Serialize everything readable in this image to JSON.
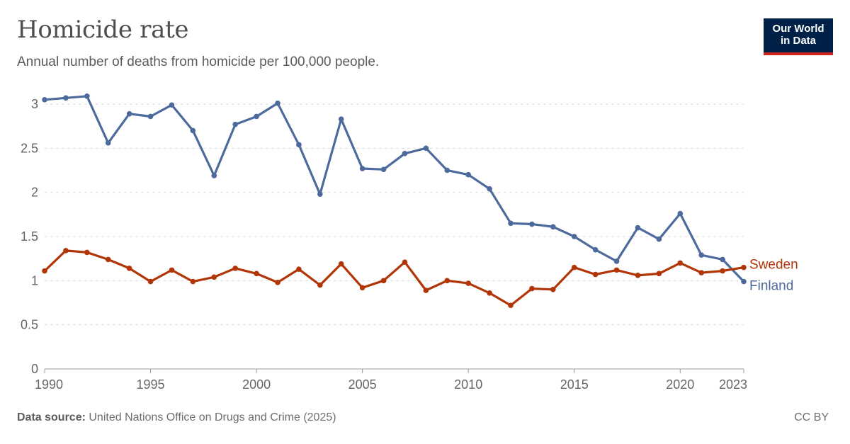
{
  "header": {
    "title": "Homicide rate",
    "subtitle": "Annual number of deaths from homicide per 100,000 people."
  },
  "logo": {
    "line1": "Our World",
    "line2": "in Data",
    "bg_color": "#002147",
    "accent_color": "#ce261e"
  },
  "footer": {
    "source_label": "Data source:",
    "source_text": "United Nations Office on Drugs and Crime (2025)",
    "license": "CC BY"
  },
  "chart_data": {
    "type": "line",
    "title": "Homicide rate",
    "subtitle": "Annual number of deaths from homicide per 100,000 people.",
    "xlim": [
      1990,
      2023
    ],
    "ylim": [
      0,
      3
    ],
    "x_ticks": [
      1990,
      1995,
      2000,
      2005,
      2010,
      2015,
      2020,
      2023
    ],
    "y_ticks": [
      0,
      0.5,
      1,
      1.5,
      2,
      2.5,
      3
    ],
    "y_tick_labels": [
      "0",
      "0.5",
      "1",
      "1.5",
      "2",
      "2.5",
      "3"
    ],
    "grid": "horizontal dashed",
    "legend": "inline labels at line ends (right)",
    "x": [
      1990,
      1991,
      1992,
      1993,
      1994,
      1995,
      1996,
      1997,
      1998,
      1999,
      2000,
      2001,
      2002,
      2003,
      2004,
      2005,
      2006,
      2007,
      2008,
      2009,
      2010,
      2011,
      2012,
      2013,
      2014,
      2015,
      2016,
      2017,
      2018,
      2019,
      2020,
      2021,
      2022,
      2023
    ],
    "series": [
      {
        "name": "Finland",
        "color": "#4c6a9c",
        "values": [
          3.05,
          3.07,
          3.09,
          2.56,
          2.89,
          2.86,
          2.99,
          2.7,
          2.19,
          2.77,
          2.86,
          3.01,
          2.54,
          1.98,
          2.83,
          2.27,
          2.26,
          2.44,
          2.5,
          2.25,
          2.2,
          2.04,
          1.65,
          1.64,
          1.61,
          1.5,
          1.35,
          1.22,
          1.6,
          1.47,
          1.76,
          1.29,
          1.24,
          0.99
        ]
      },
      {
        "name": "Sweden",
        "color": "#b13507",
        "values": [
          1.11,
          1.34,
          1.32,
          1.24,
          1.14,
          0.99,
          1.12,
          0.99,
          1.04,
          1.14,
          1.08,
          0.98,
          1.13,
          0.95,
          1.19,
          0.92,
          1.0,
          1.21,
          0.89,
          1.0,
          0.97,
          0.86,
          0.72,
          0.91,
          0.9,
          1.15,
          1.07,
          1.12,
          1.06,
          1.08,
          1.2,
          1.09,
          1.11,
          1.15
        ]
      }
    ]
  }
}
